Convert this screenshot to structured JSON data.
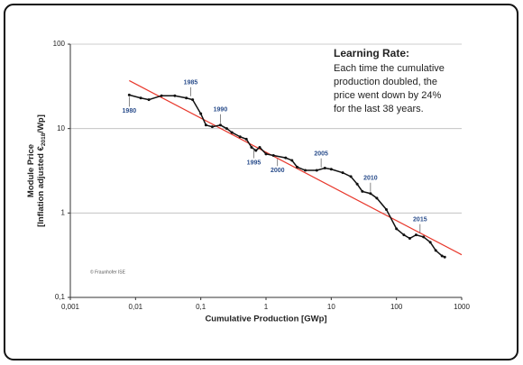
{
  "chart_data": {
    "type": "line",
    "xlabel": "Cumulative Production [GWp]",
    "ylabel": [
      "Module Price",
      [
        "[Inflation adjusted €",
        "2018",
        "/Wp]"
      ]
    ],
    "xscale": "log",
    "yscale": "log",
    "grid": true,
    "xlim": [
      0.001,
      1000
    ],
    "ylim": [
      0.1,
      100
    ],
    "xticks": [
      {
        "value": 0.001,
        "label": "0,001"
      },
      {
        "value": 0.01,
        "label": "0,01"
      },
      {
        "value": 0.1,
        "label": "0,1"
      },
      1,
      10,
      100,
      1000
    ],
    "yticks": [
      {
        "value": 0.1,
        "label": "0,1"
      },
      1,
      10,
      100
    ],
    "color": "#111111",
    "x": [
      0.008,
      0.012,
      0.016,
      0.025,
      0.04,
      0.06,
      0.075,
      0.1,
      0.12,
      0.15,
      0.2,
      0.25,
      0.3,
      0.4,
      0.5,
      0.6,
      0.7,
      0.8,
      1.0,
      1.3,
      2,
      2.5,
      3,
      4,
      6,
      8,
      10,
      15,
      20,
      25,
      30,
      40,
      50,
      70,
      100,
      130,
      160,
      200,
      260,
      330,
      400,
      500,
      550
    ],
    "values": [
      25,
      23,
      22,
      24.5,
      24.5,
      23,
      22,
      15,
      11,
      10.5,
      11,
      10,
      9,
      8,
      7.5,
      6,
      5.5,
      6,
      5,
      4.8,
      4.5,
      4.2,
      3.5,
      3.2,
      3.2,
      3.4,
      3.3,
      3,
      2.7,
      2.2,
      1.8,
      1.7,
      1.5,
      1.1,
      0.65,
      0.55,
      0.5,
      0.55,
      0.52,
      0.45,
      0.36,
      0.31,
      0.3
    ],
    "trend": {
      "color": "#e8382c",
      "x": [
        0.008,
        1000
      ],
      "values": [
        37,
        0.32
      ]
    },
    "annotations": [
      {
        "text": "1980",
        "x": 0.008,
        "y": 25
      },
      {
        "text": "1985",
        "x": 0.07,
        "y": 23
      },
      {
        "text": "1990",
        "x": 0.2,
        "y": 11
      },
      {
        "text": "1995",
        "x": 0.65,
        "y": 6
      },
      {
        "text": "2000",
        "x": 1.5,
        "y": 4.6
      },
      {
        "text": "2005",
        "x": 7,
        "y": 3.3
      },
      {
        "text": "2010",
        "x": 40,
        "y": 1.7
      },
      {
        "text": "2015",
        "x": 230,
        "y": 0.55
      }
    ],
    "annotation_color": "#2b4e8c",
    "note_title": "Learning Rate:",
    "note_lines": [
      "Each time the cumulative",
      "production doubled, the",
      "price went down by 24%",
      "for the last 38 years."
    ],
    "credit": "© Fraunhofer ISE"
  }
}
